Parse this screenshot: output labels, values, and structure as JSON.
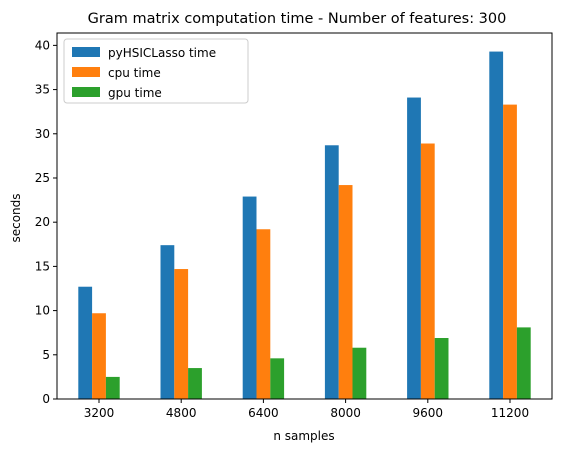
{
  "chart_data": {
    "type": "bar",
    "title": "Gram matrix computation time - Number of features: 300",
    "xlabel": "n samples",
    "ylabel": "seconds",
    "categories": [
      "3200",
      "4800",
      "6400",
      "8000",
      "9600",
      "11200"
    ],
    "ylim": [
      0,
      41.4
    ],
    "yticks": [
      0,
      5,
      10,
      15,
      20,
      25,
      30,
      35,
      40
    ],
    "grid": false,
    "legend": "top-left",
    "series": [
      {
        "name": "pyHSICLasso time",
        "color": "#1f77b4",
        "values": [
          12.7,
          17.4,
          22.9,
          28.7,
          34.1,
          39.3
        ]
      },
      {
        "name": "cpu time",
        "color": "#ff7f0e",
        "values": [
          9.7,
          14.7,
          19.2,
          24.2,
          28.9,
          33.3
        ]
      },
      {
        "name": "gpu time",
        "color": "#2ca02c",
        "values": [
          2.5,
          3.5,
          4.6,
          5.8,
          6.9,
          8.1
        ]
      }
    ]
  }
}
